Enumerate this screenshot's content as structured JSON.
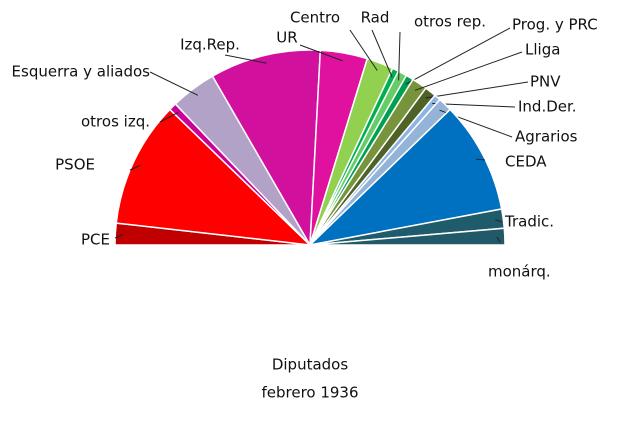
{
  "chart_data": {
    "type": "half-pie",
    "title": [
      "Diputados",
      "febrero 1936"
    ],
    "categories": [
      "PCE",
      "PSOE",
      "otros izq.",
      "Esquerra y aliados",
      "Izq.Rep.",
      "UR",
      "Centro",
      "Rad",
      "otros rep.",
      "Prog. y PRC",
      "Lliga",
      "PNV",
      "Ind.Der.",
      "Agrarios",
      "CEDA",
      "Tradic.",
      "monárq."
    ],
    "values": [
      17,
      99,
      6,
      36,
      87,
      37,
      21,
      5,
      7,
      6,
      12,
      9,
      5,
      11,
      88,
      15,
      13
    ],
    "colors": [
      "#c00000",
      "#ff0000",
      "#cc0099",
      "#b3a2c7",
      "#d2109e",
      "#e0119f",
      "#92d050",
      "#00b050",
      "#66cc66",
      "#00a050",
      "#77933c",
      "#4f6228",
      "#8eb4e3",
      "#95b3d7",
      "#0070c0",
      "#1f5c6b",
      "#215968"
    ]
  }
}
